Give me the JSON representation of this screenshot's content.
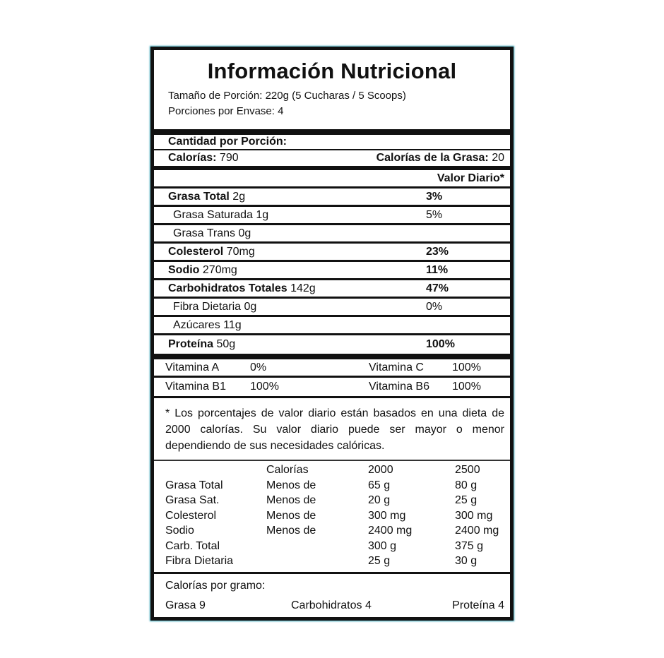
{
  "title": "Información Nutricional",
  "serving_size": "Tamaño de Porción: 220g  (5 Cucharas / 5 Scoops)",
  "servings_per_container": "Porciones por Envase: 4",
  "amount_per_serving": "Cantidad por Porción:",
  "calories_label": "Calorías:",
  "calories_value": "790",
  "fat_calories_label": "Calorías de la Grasa:",
  "fat_calories_value": "20",
  "daily_value_header": "Valor Diario*",
  "nutrients": [
    {
      "name": "Grasa Total",
      "amount": "2g",
      "dv": "3%",
      "bold": true
    },
    {
      "name": "Grasa Saturada",
      "amount": "1g",
      "dv": "5%",
      "bold": false
    },
    {
      "name": "Grasa Trans",
      "amount": "0g",
      "dv": "",
      "bold": false
    },
    {
      "name": "Colesterol",
      "amount": "70mg",
      "dv": "23%",
      "bold": true
    },
    {
      "name": "Sodio",
      "amount": "270mg",
      "dv": "11%",
      "bold": true
    },
    {
      "name": "Carbohidratos Totales",
      "amount": "142g",
      "dv": "47%",
      "bold": true
    },
    {
      "name": "Fibra Dietaria",
      "amount": "0g",
      "dv": "0%",
      "bold": false
    },
    {
      "name": "Azúcares",
      "amount": "11g",
      "dv": "",
      "bold": false
    },
    {
      "name": "Proteína",
      "amount": "50g",
      "dv": "100%",
      "bold": true
    }
  ],
  "vitamins": [
    [
      {
        "name": "Vitamina A",
        "value": "0%"
      },
      {
        "name": "Vitamina C",
        "value": "100%"
      }
    ],
    [
      {
        "name": "Vitamina B1",
        "value": "100%"
      },
      {
        "name": "Vitamina B6",
        "value": "100%"
      }
    ]
  ],
  "footnote": "* Los porcentajes de valor diario están basados en una dieta de 2000 calorías. Su valor diario puede ser mayor o menor dependiendo de sus necesidades calóricas.",
  "reference_table": [
    [
      "",
      "Calorías",
      "2000",
      "2500"
    ],
    [
      "Grasa Total",
      "Menos de",
      "65 g",
      "80 g"
    ],
    [
      "Grasa Sat.",
      "Menos de",
      "20 g",
      "25 g"
    ],
    [
      "Colesterol",
      "Menos de",
      "300 mg",
      "300 mg"
    ],
    [
      "Sodio",
      "Menos de",
      "2400 mg",
      "2400 mg"
    ],
    [
      "Carb. Total",
      "",
      "300 g",
      "375 g"
    ],
    [
      "Fibra Dietaria",
      "",
      "25 g",
      "30 g"
    ]
  ],
  "calories_per_gram": {
    "label": "Calorías por gramo:",
    "fat": "Grasa 9",
    "carbs": "Carbohidratos 4",
    "protein": "Proteína 4"
  }
}
